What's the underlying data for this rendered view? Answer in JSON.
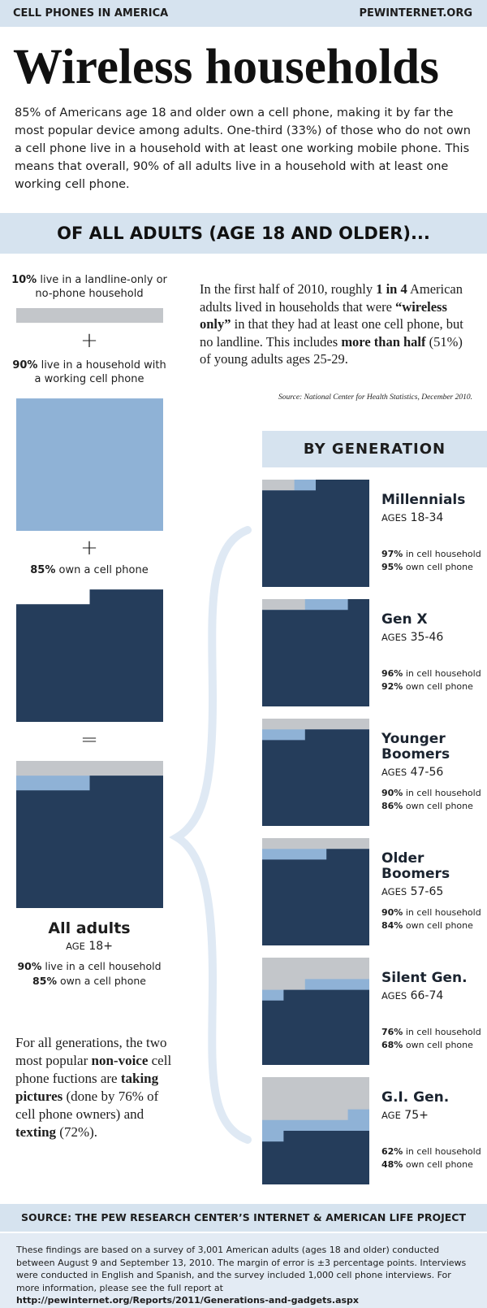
{
  "header": {
    "section": "CELL PHONES IN AMERICA",
    "site": "PEWINTERNET.ORG"
  },
  "title": "Wireless households",
  "intro": "85% of Americans age 18 and older own a cell phone, making it by far the most popular device among adults. One-third (33%) of those who do not own a cell phone live in a household with at least one working mobile phone. This means that overall, 90% of all adults live in a household with at least one working cell phone.",
  "band": "OF ALL ADULTS (AGE 18 AND OLDER)...",
  "colors": {
    "none": "#c3c6ca",
    "household": "#8fb2d6",
    "own": "#253d5b"
  },
  "components": [
    {
      "value": 10,
      "label": "10%",
      "text": "live in a landline-only or no-phone household",
      "color": "#c3c6ca"
    },
    {
      "value": 90,
      "label": "90%",
      "text": "live in a household with a working cell phone",
      "color": "#8fb2d6"
    },
    {
      "value": 85,
      "label": "85%",
      "text": "own a cell phone",
      "color": "#253d5b"
    }
  ],
  "operators": [
    "+",
    "+",
    "="
  ],
  "all_adults": {
    "name": "All adults",
    "age_prefix": "AGE",
    "age": "18+",
    "household": 90,
    "household_label": "90%",
    "household_text": "live in a cell household",
    "own": 85,
    "own_label": "85%",
    "own_text": "own a cell phone"
  },
  "wireless_note": [
    "In the first half of 2010, roughly ",
    "1 in 4",
    " American adults lived in households that were ",
    "“wireless only”",
    " in that they had at least one cell phone, but no landline. This includes ",
    "more than half",
    " (51%) of young adults ages 25-29."
  ],
  "wireless_source": "Source: National Center for Health Statistics, December 2010.",
  "by_generation": "BY GENERATION",
  "generations": [
    {
      "name": "Millennials",
      "age_prefix": "AGES",
      "ages": "18-34",
      "household": 97,
      "household_label": "97%",
      "household_text": "in cell household",
      "own": 95,
      "own_label": "95%",
      "own_text": "own cell phone"
    },
    {
      "name": "Gen X",
      "age_prefix": "AGES",
      "ages": "35-46",
      "household": 96,
      "household_label": "96%",
      "household_text": "in cell household",
      "own": 92,
      "own_label": "92%",
      "own_text": "own cell phone"
    },
    {
      "name": "Younger Boomers",
      "age_prefix": "AGES",
      "ages": "47-56",
      "household": 90,
      "household_label": "90%",
      "household_text": "in cell household",
      "own": 86,
      "own_label": "86%",
      "own_text": "own cell phone"
    },
    {
      "name": "Older Boomers",
      "age_prefix": "AGES",
      "ages": "57-65",
      "household": 90,
      "household_label": "90%",
      "household_text": "in cell household",
      "own": 84,
      "own_label": "84%",
      "own_text": "own cell phone"
    },
    {
      "name": "Silent Gen.",
      "age_prefix": "AGES",
      "ages": "66-74",
      "household": 76,
      "household_label": "76%",
      "household_text": "in cell household",
      "own": 68,
      "own_label": "68%",
      "own_text": "own cell phone"
    },
    {
      "name": "G.I. Gen.",
      "age_prefix": "AGE",
      "ages": "75+",
      "household": 62,
      "household_label": "62%",
      "household_text": "in cell household",
      "own": 48,
      "own_label": "48%",
      "own_text": "own cell phone"
    }
  ],
  "functions_note": [
    "For all generations, the two most popular ",
    "non-voice",
    " cell phone fuctions are ",
    "taking pictures",
    " (done by 76% of cell phone owners) and ",
    "texting",
    " (72%)."
  ],
  "source_band": "SOURCE: THE PEW RESEARCH CENTER’S INTERNET & AMERICAN LIFE PROJECT",
  "footer": [
    "These findings are based on a survey of 3,001 American adults (ages 18 and older) conducted between August 9 and September 13, 2010. The margin of error is ±3 percentage points. Interviews were conducted in English and Spanish, and the survey included 1,000 cell phone interviews. For more information, please see the full report at ",
    "http://pewinternet.org/Reports/2011/Generations-and-gadgets.aspx"
  ]
}
